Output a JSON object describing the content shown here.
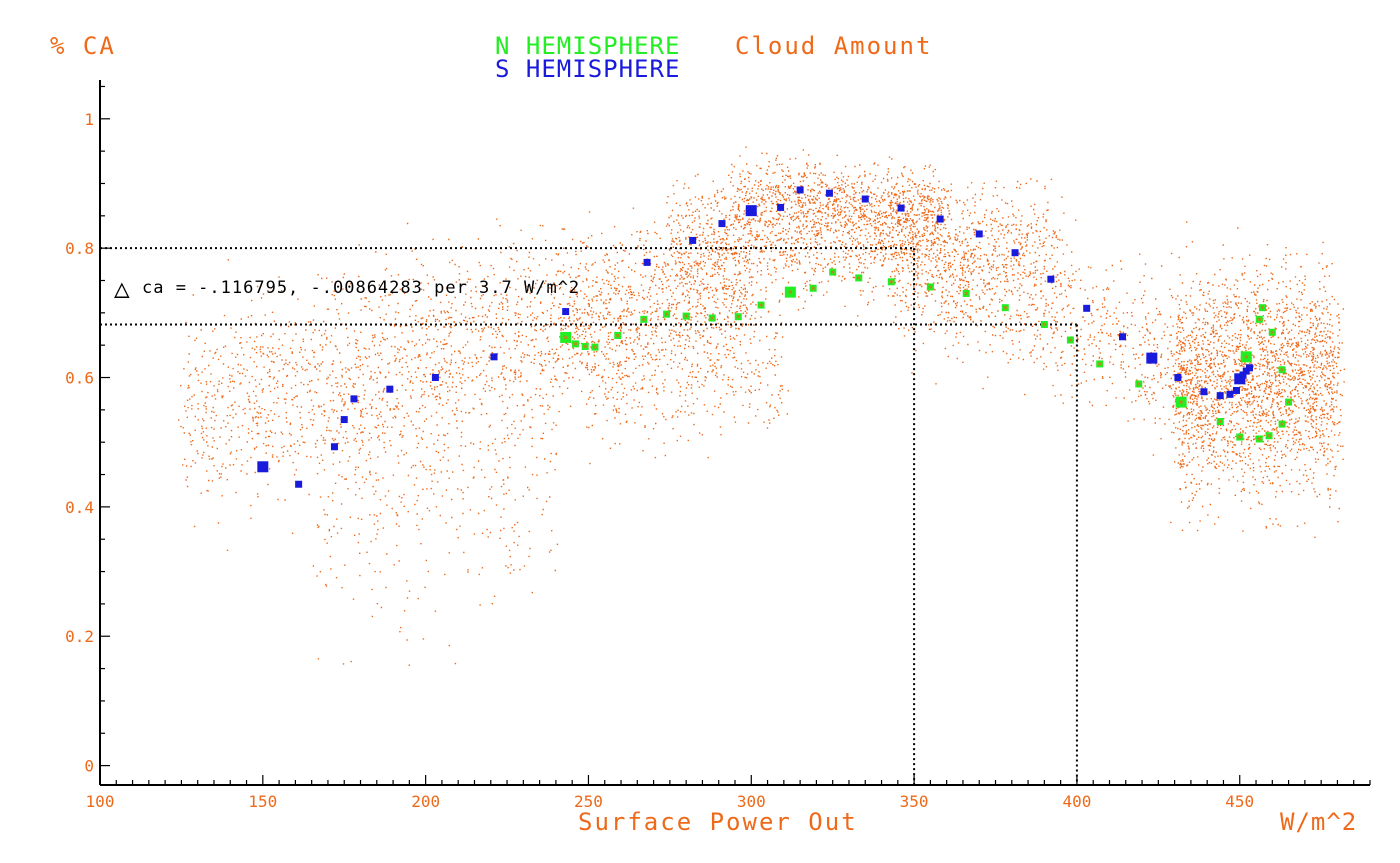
{
  "chart_data": {
    "type": "scatter",
    "title_parts": [
      {
        "text": "N HEMISPHERE",
        "color": "#22ee22"
      },
      {
        "text": "Cloud Amount",
        "color": "#ee6a1a"
      },
      {
        "text": "S HEMISPHERE",
        "color": "#1a1adc"
      }
    ],
    "ylabel": "% CA",
    "xlabel": "Surface Power Out",
    "xunit": "W/m^2",
    "xlim": [
      100,
      490
    ],
    "ylim": [
      -0.03,
      1.06
    ],
    "xticks": [
      100,
      150,
      200,
      250,
      300,
      350,
      400,
      450
    ],
    "xtick_labels": [
      "100",
      "150",
      "200",
      "250",
      "300",
      "350",
      "400",
      "450"
    ],
    "yticks": [
      0,
      0.2,
      0.4,
      0.6,
      0.8,
      1
    ],
    "ytick_labels": [
      "0",
      "0.2",
      "0.4",
      "0.6",
      "0.8",
      "1"
    ],
    "annotation": {
      "symbol": "△",
      "text": "ca = -.116795, -.00864283 per 3.7 W/m^2",
      "x": 106,
      "y": 0.74
    },
    "reference_lines": [
      {
        "kind": "h",
        "y": 0.8,
        "x_to": 350
      },
      {
        "kind": "h",
        "y": 0.682,
        "x_to": 400
      },
      {
        "kind": "v",
        "x": 350,
        "y_to": 0.8
      },
      {
        "kind": "v",
        "x": 400,
        "y_to": 0.682
      }
    ],
    "colors": {
      "axis": "#ee6a1a",
      "cloud": "#ee6a1a",
      "north": "#22ee22",
      "south": "#1a1adc",
      "frame": "#000000"
    },
    "series": [
      {
        "name": "N HEMISPHERE",
        "color": "#22ee22",
        "points": [
          [
            243,
            0.662
          ],
          [
            246,
            0.652
          ],
          [
            249,
            0.648
          ],
          [
            252,
            0.647
          ],
          [
            259,
            0.665
          ],
          [
            267,
            0.69
          ],
          [
            274,
            0.698
          ],
          [
            280,
            0.695
          ],
          [
            288,
            0.692
          ],
          [
            296,
            0.694
          ],
          [
            303,
            0.712
          ],
          [
            312,
            0.732
          ],
          [
            319,
            0.738
          ],
          [
            325,
            0.763
          ],
          [
            333,
            0.754
          ],
          [
            343,
            0.748
          ],
          [
            355,
            0.74
          ],
          [
            366,
            0.73
          ],
          [
            378,
            0.708
          ],
          [
            390,
            0.682
          ],
          [
            398,
            0.658
          ],
          [
            407,
            0.621
          ],
          [
            419,
            0.59
          ],
          [
            432,
            0.562
          ],
          [
            444,
            0.532
          ],
          [
            450,
            0.508
          ],
          [
            452,
            0.632
          ],
          [
            456,
            0.505
          ],
          [
            456,
            0.69
          ],
          [
            457,
            0.708
          ],
          [
            459,
            0.51
          ],
          [
            460,
            0.67
          ],
          [
            463,
            0.612
          ],
          [
            463,
            0.528
          ],
          [
            465,
            0.562
          ]
        ],
        "sizes": [
          2,
          1,
          1,
          1,
          1,
          1,
          1,
          1,
          1,
          1,
          1,
          2,
          1,
          1,
          1,
          1,
          1,
          1,
          1,
          1,
          1,
          1,
          1,
          2,
          1,
          1,
          2,
          1,
          1,
          1,
          1,
          1,
          1,
          1,
          1
        ]
      },
      {
        "name": "S HEMISPHERE",
        "color": "#1a1adc",
        "points": [
          [
            150,
            0.462
          ],
          [
            161,
            0.435
          ],
          [
            172,
            0.493
          ],
          [
            175,
            0.535
          ],
          [
            178,
            0.567
          ],
          [
            189,
            0.582
          ],
          [
            203,
            0.6
          ],
          [
            221,
            0.632
          ],
          [
            243,
            0.702
          ],
          [
            268,
            0.778
          ],
          [
            282,
            0.812
          ],
          [
            291,
            0.838
          ],
          [
            300,
            0.858
          ],
          [
            309,
            0.863
          ],
          [
            315,
            0.89
          ],
          [
            324,
            0.885
          ],
          [
            335,
            0.876
          ],
          [
            346,
            0.862
          ],
          [
            358,
            0.845
          ],
          [
            370,
            0.822
          ],
          [
            381,
            0.793
          ],
          [
            392,
            0.752
          ],
          [
            403,
            0.707
          ],
          [
            414,
            0.663
          ],
          [
            423,
            0.63
          ],
          [
            431,
            0.6
          ],
          [
            439,
            0.578
          ],
          [
            444,
            0.572
          ],
          [
            447,
            0.574
          ],
          [
            449,
            0.58
          ],
          [
            450,
            0.598
          ],
          [
            451,
            0.604
          ],
          [
            452,
            0.61
          ],
          [
            453,
            0.615
          ]
        ],
        "sizes": [
          2,
          1,
          1,
          1,
          1,
          1,
          1,
          1,
          1,
          1,
          1,
          1,
          2,
          1,
          1,
          1,
          1,
          1,
          1,
          1,
          1,
          1,
          1,
          1,
          2,
          1,
          1,
          1,
          1,
          1,
          2,
          1,
          1,
          1
        ]
      }
    ],
    "cloud": {
      "name": "Cloud Amount",
      "color": "#ee6a1a",
      "point_count": 9000,
      "bands": [
        {
          "x": [
            125,
            240
          ],
          "center": [
            0.54,
            0.69
          ],
          "spread": 0.075,
          "weight": 0.16
        },
        {
          "x": [
            165,
            240
          ],
          "center": [
            0.42,
            0.48
          ],
          "spread": 0.11,
          "weight": 0.05
        },
        {
          "x": [
            240,
            300
          ],
          "center": [
            0.69,
            0.75
          ],
          "spread": 0.06,
          "weight": 0.12
        },
        {
          "x": [
            275,
            395
          ],
          "center": [
            0.82,
            0.8
          ],
          "spread": 0.045,
          "weight": 0.16
        },
        {
          "x": [
            295,
            360
          ],
          "center": [
            0.88,
            0.86
          ],
          "spread": 0.03,
          "weight": 0.1
        },
        {
          "x": [
            340,
            440
          ],
          "center": [
            0.8,
            0.6
          ],
          "spread": 0.06,
          "weight": 0.11
        },
        {
          "x": [
            250,
            310
          ],
          "center": [
            0.6,
            0.6
          ],
          "spread": 0.05,
          "weight": 0.04
        },
        {
          "x": [
            430,
            480
          ],
          "center": [
            0.59,
            0.59
          ],
          "spread": 0.085,
          "weight": 0.26
        }
      ]
    }
  }
}
